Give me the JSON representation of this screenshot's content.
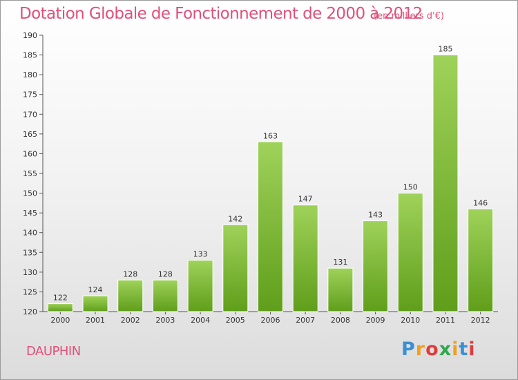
{
  "chart_data": {
    "type": "bar",
    "title": "Dotation Globale de Fonctionnement de 2000 à 2012",
    "unit": "(en milliers d'€)",
    "categories": [
      "2000",
      "2001",
      "2002",
      "2003",
      "2004",
      "2005",
      "2006",
      "2007",
      "2008",
      "2009",
      "2010",
      "2011",
      "2012"
    ],
    "values": [
      122,
      124,
      128,
      128,
      133,
      142,
      163,
      147,
      131,
      143,
      150,
      185,
      146
    ],
    "ylim": [
      120,
      190
    ],
    "yticks": [
      120,
      125,
      130,
      135,
      140,
      145,
      150,
      155,
      160,
      165,
      170,
      175,
      180,
      185,
      190
    ],
    "bar_color": "#8cc63f",
    "grid": false
  },
  "commune": "DAUPHIN",
  "logo": {
    "letters": [
      "P",
      "r",
      "o",
      "x",
      "i",
      "t",
      "i"
    ],
    "colors": [
      "#3b8fd4",
      "#f0a020",
      "#e03c3c",
      "#2fa84f",
      "#f0a020",
      "#3b8fd4",
      "#e03c3c"
    ]
  }
}
